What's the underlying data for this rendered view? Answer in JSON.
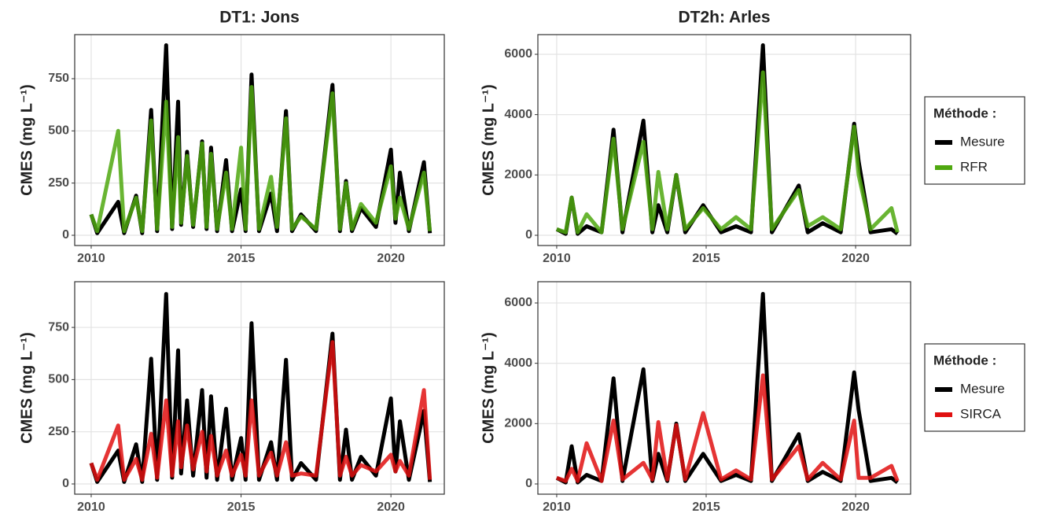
{
  "chart_data": [
    {
      "type": "line",
      "title": "DT1: Jons",
      "ylabel": "CMES (mg L⁻¹)",
      "xlim": [
        2009.45,
        2021.78
      ],
      "xticks": [
        2010,
        2015,
        2020
      ],
      "ylim": [
        -49,
        961
      ],
      "yticks": [
        0,
        250,
        500,
        750
      ],
      "grid": true,
      "x": [
        2010.0,
        2010.2,
        2010.9,
        2011.1,
        2011.5,
        2011.7,
        2012.0,
        2012.2,
        2012.5,
        2012.7,
        2012.9,
        2013.0,
        2013.2,
        2013.4,
        2013.7,
        2013.85,
        2014.0,
        2014.2,
        2014.5,
        2014.7,
        2015.0,
        2015.15,
        2015.35,
        2015.6,
        2016.0,
        2016.2,
        2016.5,
        2016.7,
        2017.0,
        2017.5,
        2018.05,
        2018.3,
        2018.5,
        2018.7,
        2019.0,
        2019.5,
        2020.0,
        2020.15,
        2020.3,
        2020.6,
        2021.1,
        2021.3
      ],
      "series": [
        {
          "color": "#000000",
          "values": [
            100,
            10,
            160,
            10,
            190,
            10,
            600,
            20,
            910,
            30,
            640,
            50,
            400,
            40,
            450,
            30,
            420,
            20,
            360,
            20,
            220,
            20,
            770,
            20,
            200,
            20,
            595,
            20,
            100,
            20,
            720,
            20,
            260,
            20,
            130,
            40,
            410,
            60,
            300,
            20,
            350,
            10
          ]
        },
        {
          "color": "#4fa80f",
          "values": [
            100,
            20,
            500,
            20,
            180,
            20,
            550,
            30,
            640,
            40,
            470,
            60,
            380,
            50,
            440,
            40,
            390,
            30,
            300,
            30,
            420,
            30,
            710,
            30,
            280,
            40,
            560,
            30,
            90,
            30,
            680,
            30,
            250,
            30,
            150,
            60,
            330,
            80,
            180,
            30,
            300,
            20
          ]
        }
      ]
    },
    {
      "type": "line",
      "title": "DT2h: Arles",
      "ylabel": "CMES (mg L⁻¹)",
      "legend_title": "Méthode :",
      "xlim": [
        2009.37,
        2021.84
      ],
      "xticks": [
        2010,
        2015,
        2020
      ],
      "ylim": [
        -339,
        6652
      ],
      "yticks": [
        0,
        2000,
        4000,
        6000
      ],
      "grid": true,
      "x": [
        2010.0,
        2010.3,
        2010.5,
        2010.7,
        2011.0,
        2011.5,
        2011.9,
        2012.2,
        2012.9,
        2013.2,
        2013.4,
        2013.7,
        2014.0,
        2014.3,
        2014.9,
        2015.5,
        2016.0,
        2016.5,
        2016.9,
        2017.2,
        2018.1,
        2018.4,
        2018.9,
        2019.5,
        2019.95,
        2020.1,
        2020.5,
        2021.2,
        2021.4
      ],
      "series": [
        {
          "name": "Mesure",
          "color": "#000000",
          "values": [
            200,
            50,
            1250,
            50,
            300,
            100,
            3500,
            100,
            3800,
            100,
            1000,
            100,
            2000,
            100,
            1000,
            100,
            300,
            100,
            6300,
            100,
            1650,
            100,
            400,
            100,
            3700,
            2450,
            100,
            200,
            50
          ]
        },
        {
          "name": "RFR",
          "color": "#4fa80f",
          "values": [
            200,
            100,
            1250,
            100,
            700,
            100,
            3200,
            200,
            3100,
            200,
            2100,
            200,
            2000,
            200,
            900,
            200,
            600,
            200,
            5400,
            200,
            1500,
            300,
            600,
            200,
            3600,
            2000,
            200,
            900,
            100
          ]
        }
      ]
    },
    {
      "type": "line",
      "ylabel": "CMES (mg L⁻¹)",
      "xlim": [
        2009.45,
        2021.78
      ],
      "xticks": [
        2010,
        2015,
        2020
      ],
      "ylim": [
        -49,
        969
      ],
      "yticks": [
        0,
        250,
        500,
        750
      ],
      "grid": true,
      "x": [
        2010.0,
        2010.2,
        2010.9,
        2011.1,
        2011.5,
        2011.7,
        2012.0,
        2012.2,
        2012.5,
        2012.7,
        2012.9,
        2013.0,
        2013.2,
        2013.4,
        2013.7,
        2013.85,
        2014.0,
        2014.2,
        2014.5,
        2014.7,
        2015.0,
        2015.15,
        2015.35,
        2015.6,
        2016.0,
        2016.2,
        2016.5,
        2016.7,
        2017.0,
        2017.5,
        2018.05,
        2018.3,
        2018.5,
        2018.7,
        2019.0,
        2019.5,
        2020.0,
        2020.15,
        2020.3,
        2020.6,
        2021.1,
        2021.3
      ],
      "series": [
        {
          "color": "#000000",
          "values": [
            100,
            10,
            160,
            10,
            190,
            10,
            600,
            20,
            910,
            30,
            640,
            50,
            400,
            40,
            450,
            30,
            420,
            20,
            360,
            20,
            220,
            20,
            770,
            20,
            200,
            20,
            595,
            20,
            100,
            20,
            720,
            20,
            260,
            20,
            130,
            40,
            410,
            60,
            300,
            20,
            350,
            10
          ]
        },
        {
          "color": "#e01010",
          "values": [
            100,
            20,
            280,
            20,
            120,
            20,
            240,
            30,
            400,
            40,
            300,
            80,
            280,
            70,
            250,
            60,
            230,
            40,
            160,
            40,
            140,
            40,
            400,
            40,
            150,
            40,
            200,
            40,
            50,
            40,
            680,
            40,
            130,
            40,
            90,
            60,
            140,
            60,
            110,
            40,
            450,
            20
          ]
        }
      ]
    },
    {
      "type": "line",
      "ylabel": "CMES (mg L⁻¹)",
      "legend_title": "Méthode :",
      "xlim": [
        2009.37,
        2021.84
      ],
      "xticks": [
        2010,
        2015,
        2020
      ],
      "ylim": [
        -339,
        6704
      ],
      "yticks": [
        0,
        2000,
        4000,
        6000
      ],
      "grid": true,
      "x": [
        2010.0,
        2010.3,
        2010.5,
        2010.7,
        2011.0,
        2011.5,
        2011.9,
        2012.2,
        2012.9,
        2013.2,
        2013.4,
        2013.7,
        2014.0,
        2014.3,
        2014.9,
        2015.5,
        2016.0,
        2016.5,
        2016.9,
        2017.2,
        2018.1,
        2018.4,
        2018.9,
        2019.5,
        2019.95,
        2020.1,
        2020.5,
        2021.2,
        2021.4
      ],
      "series": [
        {
          "name": "Mesure",
          "color": "#000000",
          "values": [
            200,
            50,
            1250,
            50,
            300,
            100,
            3500,
            100,
            3800,
            100,
            1000,
            100,
            2000,
            100,
            1000,
            100,
            300,
            100,
            6300,
            100,
            1650,
            100,
            400,
            100,
            3700,
            2450,
            100,
            200,
            50
          ]
        },
        {
          "name": "SIRCA",
          "color": "#e01010",
          "values": [
            200,
            100,
            500,
            100,
            1350,
            100,
            2100,
            150,
            700,
            150,
            2050,
            150,
            1950,
            150,
            2350,
            150,
            450,
            150,
            3600,
            150,
            1250,
            150,
            700,
            150,
            2100,
            200,
            200,
            600,
            100
          ]
        }
      ]
    }
  ]
}
